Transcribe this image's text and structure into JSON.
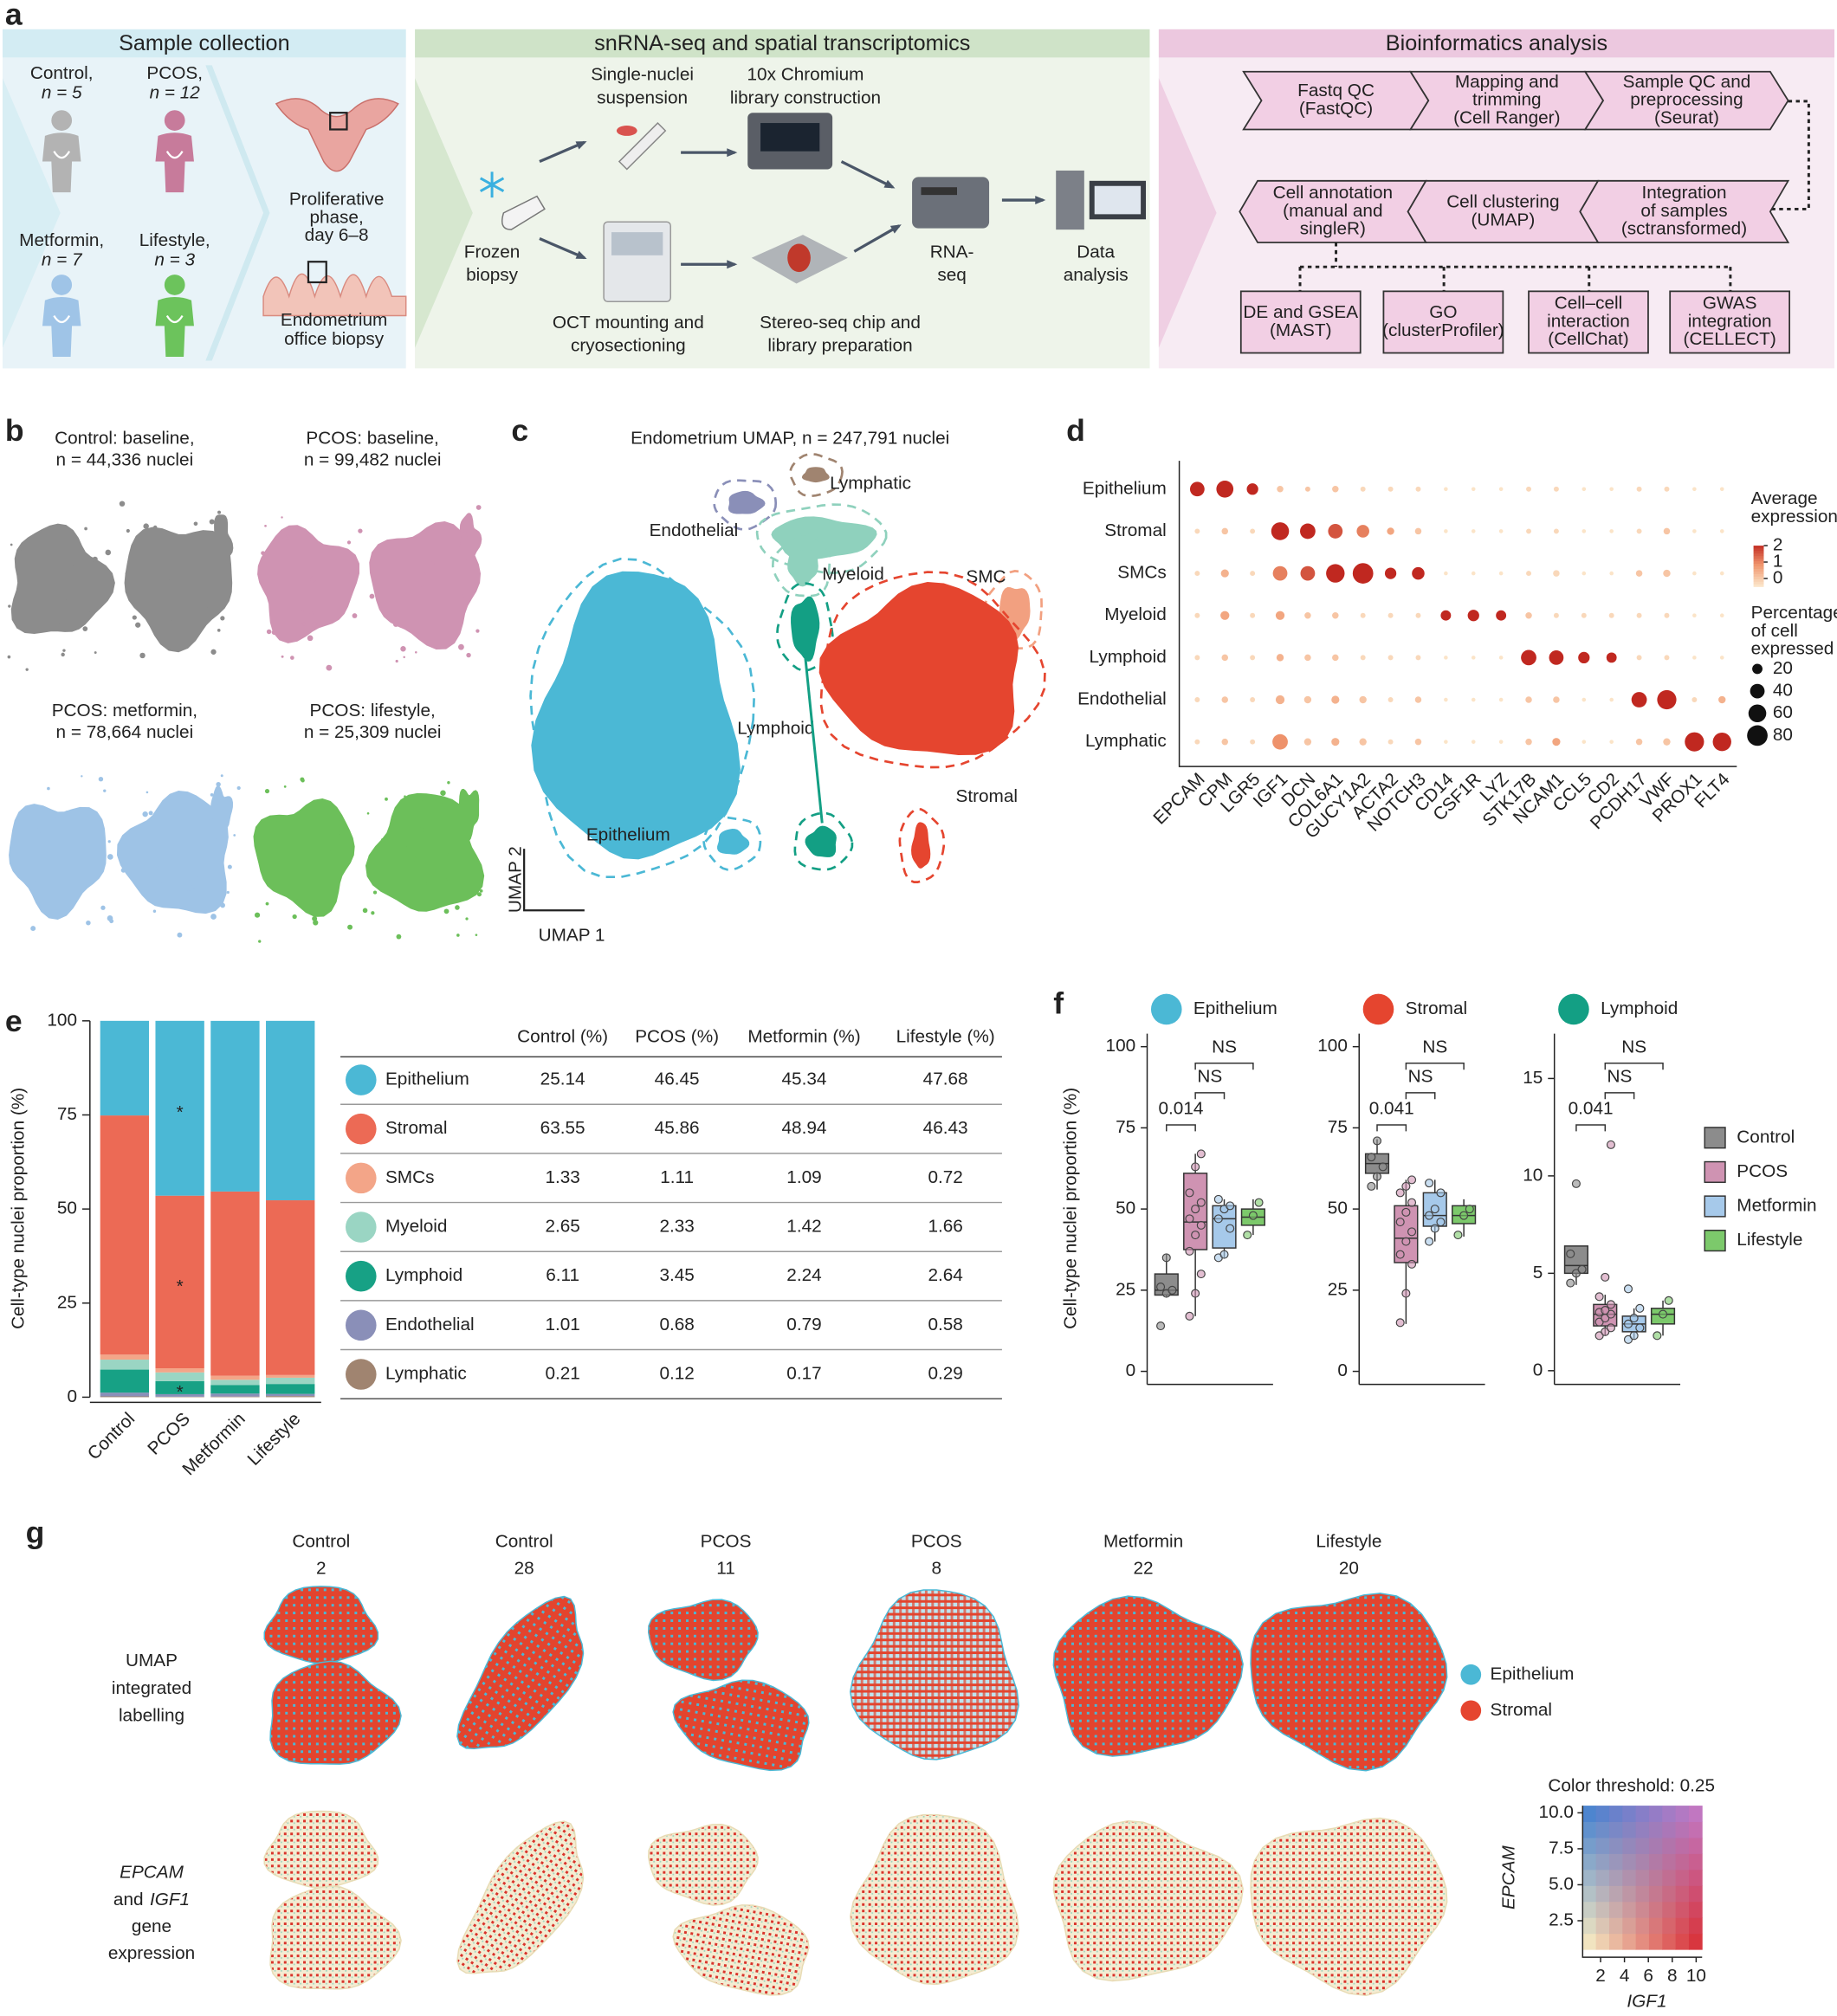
{
  "panel_labels": [
    "a",
    "b",
    "c",
    "d",
    "e",
    "f",
    "g"
  ],
  "panel_a": {
    "sections": [
      "Sample collection",
      "snRNA-seq and spatial transcriptomics",
      "Bioinformatics analysis"
    ],
    "groups": [
      {
        "name": "Control,",
        "n": "n = 5",
        "color": "#b3b3b3"
      },
      {
        "name": "PCOS,",
        "n": "n = 12",
        "color": "#c77b9b"
      },
      {
        "name": "Metformin,",
        "n": "n = 7",
        "color": "#9fc4e7"
      },
      {
        "name": "Lifestyle,",
        "n": "n = 3",
        "color": "#6cc35c"
      }
    ],
    "biopsy": [
      [
        "Proliferative",
        "phase,",
        "day 6–8"
      ],
      [
        "Endometrium",
        "office biopsy"
      ]
    ],
    "steps": [
      [
        "Single-nuclei",
        "suspension"
      ],
      [
        "10x Chromium",
        "library construction"
      ],
      [
        "Frozen",
        "biopsy"
      ],
      [
        "RNA-",
        "seq"
      ],
      [
        "Data",
        "analysis"
      ],
      [
        "OCT mounting and",
        "cryosectioning"
      ],
      [
        "Stereo-seq chip and",
        "library preparation"
      ]
    ],
    "pipeline": [
      [
        "Fastq QC",
        "(FastQC)"
      ],
      [
        "Mapping and",
        "trimming",
        "(Cell Ranger)"
      ],
      [
        "Sample QC and",
        "preprocessing",
        "(Seurat)"
      ],
      [
        "Cell annotation",
        "(manual and",
        "singleR)"
      ],
      [
        "Cell clustering",
        "(UMAP)"
      ],
      [
        "Integration",
        "of samples",
        "(sctransformed)"
      ]
    ],
    "outputs": [
      [
        "DE and GSEA",
        "(MAST)"
      ],
      [
        "GO",
        "(clusterProfiler)"
      ],
      [
        "Cell–cell",
        "interaction",
        "(CellChat)"
      ],
      [
        "GWAS",
        "integration",
        "(CELLECT)"
      ]
    ]
  },
  "panel_b": {
    "plots": [
      {
        "lines": [
          "Control: baseline,",
          "n = 44,336 nuclei"
        ],
        "color": "#8c8c8c"
      },
      {
        "lines": [
          "PCOS: baseline,",
          "n = 99,482 nuclei"
        ],
        "color": "#cf93b2"
      },
      {
        "lines": [
          "PCOS: metformin,",
          "n = 78,664 nuclei"
        ],
        "color": "#9ec3e6"
      },
      {
        "lines": [
          "PCOS: lifestyle,",
          "n = 25,309 nuclei"
        ],
        "color": "#6cbf5a"
      }
    ]
  },
  "panel_c": {
    "title": "Endometrium UMAP, n = 247,791 nuclei",
    "x_label": "UMAP 1",
    "y_label": "UMAP 2",
    "clusters": [
      {
        "name": "Lymphatic",
        "color": "#a08470"
      },
      {
        "name": "Endothelial",
        "color": "#8a8fb8"
      },
      {
        "name": "Myeloid",
        "color": "#8fd1bd"
      },
      {
        "name": "SMC",
        "color": "#f2a080"
      },
      {
        "name": "Lymphoid",
        "color": "#139f84"
      },
      {
        "name": "Stromal",
        "color": "#e5452f"
      },
      {
        "name": "Epithelium",
        "color": "#4bb8d5"
      }
    ]
  },
  "chart_data": [
    {
      "type": "dot",
      "categories": [
        "EPCAM",
        "CPM",
        "LGR5",
        "IGF1",
        "DCN",
        "COL6A1",
        "GUCY1A2",
        "ACTA2",
        "NOTCH3",
        "CD14",
        "CSF1R",
        "LYZ",
        "STK17B",
        "NCAM1",
        "CCL5",
        "CD2",
        "PCDH17",
        "VWF",
        "PROX1",
        "FLT4"
      ],
      "series": [
        {
          "name": "Epithelium",
          "values": [
            2,
            2,
            2,
            0,
            0,
            0,
            -0.3,
            -0.3,
            -0.3,
            -0.5,
            -0.5,
            -0.5,
            -0.3,
            -0.3,
            -0.5,
            -0.5,
            -0.3,
            -0.3,
            -0.5,
            -0.5
          ],
          "sizes": [
            40,
            55,
            25,
            8,
            5,
            8,
            5,
            5,
            5,
            3,
            3,
            3,
            5,
            5,
            3,
            3,
            5,
            5,
            3,
            3
          ]
        },
        {
          "name": "Stromal",
          "values": [
            -0.3,
            0,
            -0.3,
            2,
            2,
            1.5,
            1,
            0.5,
            0,
            -0.5,
            -0.5,
            -0.5,
            -0.3,
            -0.3,
            -0.5,
            -0.5,
            -0.3,
            0,
            -0.5,
            -0.5
          ],
          "sizes": [
            5,
            8,
            5,
            60,
            45,
            40,
            30,
            10,
            8,
            3,
            3,
            3,
            5,
            5,
            3,
            3,
            5,
            8,
            3,
            3
          ]
        },
        {
          "name": "SMCs",
          "values": [
            -0.3,
            0.3,
            -0.3,
            1,
            1.5,
            2,
            2,
            2,
            2,
            -0.5,
            -0.5,
            -0.5,
            -0.3,
            -0.3,
            -0.5,
            -0.5,
            0,
            0,
            -0.5,
            -0.5
          ],
          "sizes": [
            5,
            12,
            5,
            40,
            40,
            65,
            80,
            25,
            30,
            3,
            3,
            3,
            5,
            8,
            3,
            3,
            8,
            10,
            3,
            3
          ]
        },
        {
          "name": "Myeloid",
          "values": [
            -0.3,
            0.5,
            -0.3,
            0.5,
            0,
            0,
            -0.3,
            -0.3,
            -0.3,
            2,
            2,
            2,
            0,
            -0.3,
            -0.3,
            -0.3,
            -0.3,
            -0.3,
            -0.5,
            -0.5
          ],
          "sizes": [
            5,
            15,
            5,
            15,
            8,
            8,
            5,
            5,
            5,
            20,
            25,
            20,
            8,
            5,
            5,
            5,
            5,
            5,
            3,
            3
          ]
        },
        {
          "name": "Lymphoid",
          "values": [
            -0.3,
            0,
            -0.3,
            0.3,
            0,
            0,
            -0.3,
            -0.3,
            -0.3,
            -0.5,
            -0.5,
            -0.5,
            2,
            2,
            2,
            2,
            -0.3,
            -0.3,
            -0.5,
            -0.5
          ],
          "sizes": [
            5,
            8,
            5,
            10,
            8,
            8,
            5,
            5,
            5,
            3,
            3,
            3,
            45,
            40,
            25,
            20,
            5,
            5,
            3,
            3
          ]
        },
        {
          "name": "Endothelial",
          "values": [
            -0.3,
            0,
            -0.3,
            0.3,
            0,
            0.3,
            0,
            -0.3,
            0,
            -0.5,
            -0.5,
            -0.5,
            0,
            0,
            -0.5,
            -0.5,
            2,
            2,
            -0.3,
            0.3
          ],
          "sizes": [
            5,
            8,
            5,
            15,
            10,
            12,
            10,
            5,
            8,
            3,
            3,
            3,
            8,
            8,
            3,
            3,
            45,
            70,
            5,
            10
          ]
        },
        {
          "name": "Lymphatic",
          "values": [
            -0.3,
            0,
            -0.3,
            0.8,
            0,
            0.3,
            0,
            -0.3,
            0,
            -0.5,
            -0.5,
            -0.5,
            0,
            0.5,
            -0.5,
            -0.5,
            0,
            0,
            2,
            2
          ],
          "sizes": [
            5,
            8,
            5,
            45,
            10,
            12,
            10,
            5,
            8,
            3,
            3,
            3,
            8,
            12,
            3,
            3,
            8,
            10,
            70,
            65
          ]
        }
      ],
      "color_label": [
        "Average",
        "expression"
      ],
      "clim": [
        -0.5,
        2
      ],
      "cticks": [
        2,
        1,
        0
      ],
      "size_label": [
        "Percentage",
        "of cell",
        "expressed"
      ],
      "size_ticks": [
        20,
        40,
        60,
        80
      ],
      "size_max": 80
    },
    {
      "type": "bar",
      "stacked": true,
      "categories": [
        "Control",
        "PCOS",
        "Metformin",
        "Lifestyle"
      ],
      "series": [
        {
          "name": "Epithelium",
          "color": "#4bb8d5",
          "values": [
            25.14,
            46.45,
            45.34,
            47.68
          ]
        },
        {
          "name": "Stromal",
          "color": "#ec6a55",
          "values": [
            63.55,
            45.86,
            48.94,
            46.43
          ]
        },
        {
          "name": "SMCs",
          "color": "#f3a588",
          "values": [
            1.33,
            1.11,
            1.09,
            0.72
          ]
        },
        {
          "name": "Myeloid",
          "color": "#9ad5c3",
          "values": [
            2.65,
            2.33,
            1.42,
            1.66
          ]
        },
        {
          "name": "Lymphoid",
          "color": "#17a185",
          "values": [
            6.11,
            3.45,
            2.24,
            2.64
          ]
        },
        {
          "name": "Endothelial",
          "color": "#8a8fb8",
          "values": [
            1.01,
            0.68,
            0.79,
            0.58
          ]
        },
        {
          "name": "Lymphatic",
          "color": "#a08470",
          "values": [
            0.21,
            0.12,
            0.17,
            0.29
          ]
        }
      ],
      "ylim": [
        0,
        100
      ],
      "yticks": [
        0,
        25,
        50,
        75,
        100
      ],
      "y_label": "Cell-type nuclei proportion (%)",
      "annotations": [
        {
          "text": "*",
          "category": 1,
          "series": 0
        },
        {
          "text": "*",
          "category": 1,
          "series": 1
        },
        {
          "text": "*",
          "category": 1,
          "series": 4
        }
      ],
      "table_columns": [
        "Control (%)",
        "PCOS (%)",
        "Metformin (%)",
        "Lifestyle (%)"
      ]
    },
    {
      "type": "box",
      "title": "Epithelium",
      "color": "#4bb8d5",
      "categories": [
        "Control",
        "PCOS",
        "Metformin",
        "Lifestyle"
      ],
      "colors": [
        "#8c8c8c",
        "#cf93b2",
        "#a6c9ea",
        "#7cc96b"
      ],
      "boxes": [
        {
          "min": 23,
          "q1": 23.5,
          "median": 25,
          "q3": 30,
          "max": 36
        },
        {
          "min": 17,
          "q1": 37.5,
          "median": 46,
          "q3": 61,
          "max": 67
        },
        {
          "min": 35,
          "q1": 38,
          "median": 47,
          "q3": 51,
          "max": 53
        },
        {
          "min": 42,
          "q1": 45,
          "median": 47.5,
          "q3": 50,
          "max": 53
        }
      ],
      "points": [
        [
          14,
          24,
          25,
          26,
          35
        ],
        [
          17,
          24,
          30,
          37,
          42,
          45,
          47,
          50,
          52,
          55,
          63,
          67
        ],
        [
          35,
          36,
          44,
          47,
          50,
          51,
          53
        ],
        [
          42,
          48,
          52
        ]
      ],
      "ylim": [
        -4,
        104
      ],
      "yticks": [
        0,
        25,
        50,
        75,
        100
      ],
      "y_label": "Cell-type nuclei proportion (%)",
      "annotations": [
        {
          "text": "0.014",
          "groups": [
            0,
            1
          ]
        },
        {
          "text": "NS",
          "groups": [
            1,
            2
          ]
        },
        {
          "text": "NS",
          "groups": [
            1,
            3
          ]
        }
      ]
    },
    {
      "type": "box",
      "title": "Stromal",
      "color": "#e5452f",
      "categories": [
        "Control",
        "PCOS",
        "Metformin",
        "Lifestyle"
      ],
      "colors": [
        "#8c8c8c",
        "#cf93b2",
        "#a6c9ea",
        "#7cc96b"
      ],
      "boxes": [
        {
          "min": 56,
          "q1": 61,
          "median": 64,
          "q3": 67,
          "max": 71.5
        },
        {
          "min": 14.6,
          "q1": 33.5,
          "median": 41,
          "q3": 51,
          "max": 59
        },
        {
          "min": 40,
          "q1": 44.7,
          "median": 48,
          "q3": 55,
          "max": 59
        },
        {
          "min": 41.5,
          "q1": 45.5,
          "median": 48,
          "q3": 51,
          "max": 53
        }
      ],
      "points": [
        [
          57,
          60,
          63,
          66,
          71
        ],
        [
          15,
          24,
          33,
          36,
          40,
          43,
          46,
          49,
          52,
          55,
          57,
          59
        ],
        [
          40,
          44,
          46,
          48,
          50,
          55,
          58
        ],
        [
          42,
          48,
          50
        ]
      ],
      "ylim": [
        -4,
        104
      ],
      "yticks": [
        0,
        25,
        50,
        75,
        100
      ],
      "annotations": [
        {
          "text": "0.041",
          "groups": [
            0,
            1
          ]
        },
        {
          "text": "NS",
          "groups": [
            1,
            2
          ]
        },
        {
          "text": "NS",
          "groups": [
            1,
            3
          ]
        }
      ]
    },
    {
      "type": "box",
      "title": "Lymphoid",
      "color": "#139f84",
      "categories": [
        "Control",
        "PCOS",
        "Metformin",
        "Lifestyle"
      ],
      "colors": [
        "#8c8c8c",
        "#cf93b2",
        "#a6c9ea",
        "#7cc96b"
      ],
      "boxes": [
        {
          "min": 4.4,
          "q1": 5,
          "median": 5.4,
          "q3": 6.4,
          "max": 6.4
        },
        {
          "min": 1.8,
          "q1": 2.3,
          "median": 2.9,
          "q3": 3.4,
          "max": 3.9
        },
        {
          "min": 1.6,
          "q1": 2,
          "median": 2.4,
          "q3": 2.8,
          "max": 3.2
        },
        {
          "min": 1.8,
          "q1": 2.4,
          "median": 2.9,
          "q3": 3.2,
          "max": 3.6
        }
      ],
      "points": [
        [
          4.5,
          5,
          5.2,
          6,
          9.6
        ],
        [
          1.8,
          2,
          2.2,
          2.5,
          2.7,
          2.9,
          3,
          3.1,
          3.4,
          3.8,
          4.8,
          11.6
        ],
        [
          1.6,
          1.8,
          2.2,
          2.4,
          2.7,
          3.2,
          4.2
        ],
        [
          1.8,
          2.9,
          3.6
        ]
      ],
      "ylim": [
        -0.7,
        17.3
      ],
      "yticks": [
        0,
        5,
        10,
        15
      ],
      "annotations": [
        {
          "text": "0.041",
          "groups": [
            0,
            1
          ]
        },
        {
          "text": "NS",
          "groups": [
            1,
            2
          ]
        },
        {
          "text": "NS",
          "groups": [
            1,
            3
          ]
        }
      ]
    }
  ],
  "panel_g": {
    "columns": [
      [
        "Control",
        "2"
      ],
      [
        "Control",
        "28"
      ],
      [
        "PCOS",
        "11"
      ],
      [
        "PCOS",
        "8"
      ],
      [
        "Metformin",
        "22"
      ],
      [
        "Lifestyle",
        "20"
      ]
    ],
    "rows": [
      [
        [
          {
            "text": "UMAP"
          }
        ],
        [
          {
            "text": "integrated"
          }
        ],
        [
          {
            "text": "labelling"
          }
        ]
      ],
      [
        [
          {
            "text": "EPCAM",
            "italic": true
          }
        ],
        [
          {
            "text": "and"
          },
          {
            "text": "IGF1",
            "italic": true
          }
        ],
        [
          {
            "text": "gene"
          }
        ],
        [
          {
            "text": "expression"
          }
        ]
      ]
    ],
    "legend": [
      {
        "name": "Epithelium",
        "color": "#4bb8d5"
      },
      {
        "name": "Stromal",
        "color": "#e5452f"
      }
    ],
    "colormap": {
      "title": "Color threshold: 0.25",
      "x_label": "IGF1",
      "y_label": "EPCAM",
      "xlim": [
        0.5,
        10.5
      ],
      "xticks": [
        2,
        4,
        6,
        8,
        10
      ],
      "ylim": [
        0.5,
        10.5
      ],
      "yticks": [
        2.5,
        {
          "value": 5,
          "label": "5.0"
        },
        7.5,
        {
          "value": 10,
          "label": "10.0"
        }
      ]
    }
  }
}
